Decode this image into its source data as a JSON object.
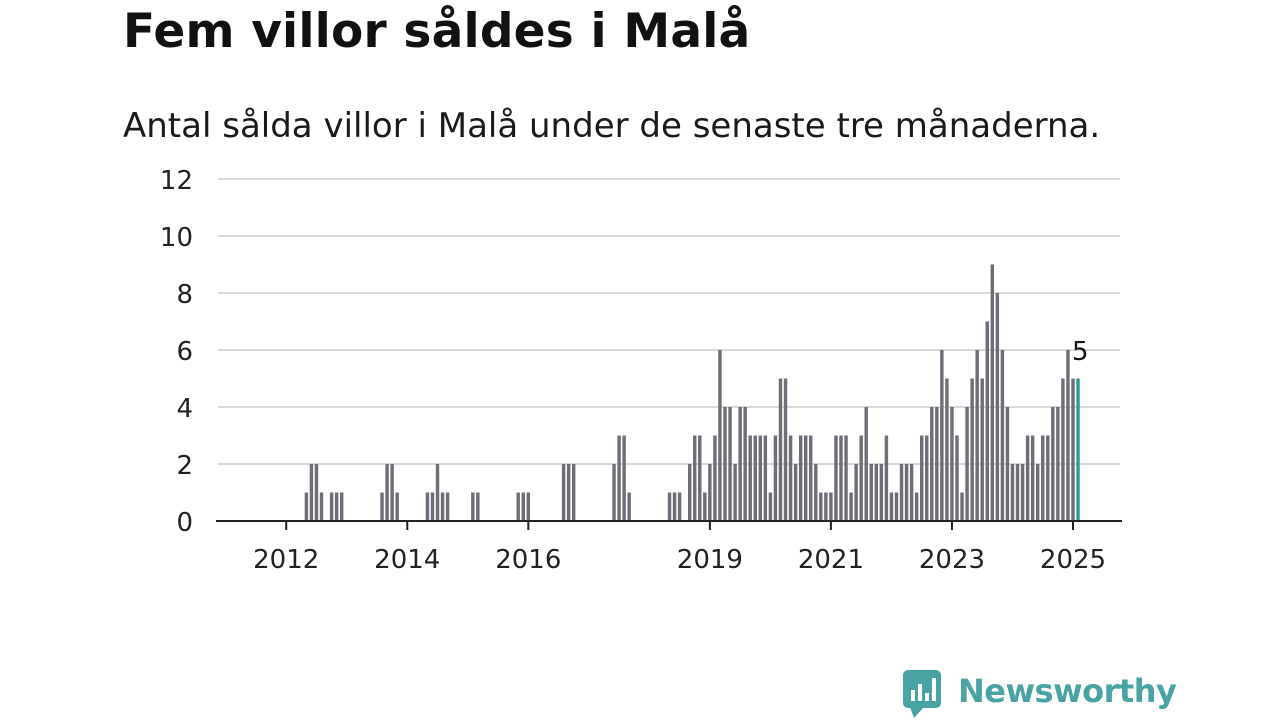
{
  "title": "Fem villor såldes i Malå",
  "subtitle": "Antal sålda villor i Malå under de senaste tre månaderna.",
  "brand": {
    "name": "Newsworthy",
    "icon": "newsworthy-logo-icon",
    "color": "#4aa3a3"
  },
  "colors": {
    "bar": "#6e6e78",
    "highlight": "#2b9c95",
    "grid": "#d9d9d9",
    "axis": "#222222",
    "text": "#222222"
  },
  "chart_data": {
    "type": "bar",
    "title": "Fem villor såldes i Malå",
    "subtitle": "Antal sålda villor i Malå under de senaste tre månaderna.",
    "xlabel": "",
    "ylabel": "",
    "ylim": [
      0,
      12
    ],
    "yticks": [
      "0",
      "2",
      "4",
      "6",
      "8",
      "10",
      "12"
    ],
    "grid": true,
    "legend": "none",
    "x_start": "2011-08",
    "x_end": "2025-01",
    "xticks": [
      {
        "label": "2012",
        "date": "2012-01"
      },
      {
        "label": "2014",
        "date": "2014-01"
      },
      {
        "label": "2016",
        "date": "2016-01"
      },
      {
        "label": "2019",
        "date": "2019-01"
      },
      {
        "label": "2021",
        "date": "2021-01"
      },
      {
        "label": "2023",
        "date": "2023-01"
      },
      {
        "label": "2025",
        "date": "2025-01"
      }
    ],
    "series": [
      {
        "values": [
          {
            "x": "2012-05",
            "y": 1
          },
          {
            "x": "2012-06",
            "y": 2
          },
          {
            "x": "2012-07",
            "y": 2
          },
          {
            "x": "2012-08",
            "y": 1
          },
          {
            "x": "2012-10",
            "y": 1
          },
          {
            "x": "2012-11",
            "y": 1
          },
          {
            "x": "2012-12",
            "y": 1
          },
          {
            "x": "2013-08",
            "y": 1
          },
          {
            "x": "2013-09",
            "y": 2
          },
          {
            "x": "2013-10",
            "y": 2
          },
          {
            "x": "2013-11",
            "y": 1
          },
          {
            "x": "2014-05",
            "y": 1
          },
          {
            "x": "2014-06",
            "y": 1
          },
          {
            "x": "2014-07",
            "y": 2
          },
          {
            "x": "2014-08",
            "y": 1
          },
          {
            "x": "2014-09",
            "y": 1
          },
          {
            "x": "2015-02",
            "y": 1
          },
          {
            "x": "2015-03",
            "y": 1
          },
          {
            "x": "2015-11",
            "y": 1
          },
          {
            "x": "2015-12",
            "y": 1
          },
          {
            "x": "2016-01",
            "y": 1
          },
          {
            "x": "2016-08",
            "y": 2
          },
          {
            "x": "2016-09",
            "y": 2
          },
          {
            "x": "2016-10",
            "y": 2
          },
          {
            "x": "2017-06",
            "y": 2
          },
          {
            "x": "2017-07",
            "y": 3
          },
          {
            "x": "2017-08",
            "y": 3
          },
          {
            "x": "2017-09",
            "y": 1
          },
          {
            "x": "2018-05",
            "y": 1
          },
          {
            "x": "2018-06",
            "y": 1
          },
          {
            "x": "2018-07",
            "y": 1
          },
          {
            "x": "2018-09",
            "y": 2
          },
          {
            "x": "2018-10",
            "y": 3
          },
          {
            "x": "2018-11",
            "y": 3
          },
          {
            "x": "2018-12",
            "y": 1
          },
          {
            "x": "2019-01",
            "y": 2
          },
          {
            "x": "2019-02",
            "y": 3
          },
          {
            "x": "2019-03",
            "y": 6
          },
          {
            "x": "2019-04",
            "y": 4
          },
          {
            "x": "2019-05",
            "y": 4
          },
          {
            "x": "2019-06",
            "y": 2
          },
          {
            "x": "2019-07",
            "y": 4
          },
          {
            "x": "2019-08",
            "y": 4
          },
          {
            "x": "2019-09",
            "y": 3
          },
          {
            "x": "2019-10",
            "y": 3
          },
          {
            "x": "2019-11",
            "y": 3
          },
          {
            "x": "2019-12",
            "y": 3
          },
          {
            "x": "2020-01",
            "y": 1
          },
          {
            "x": "2020-02",
            "y": 3
          },
          {
            "x": "2020-03",
            "y": 5
          },
          {
            "x": "2020-04",
            "y": 5
          },
          {
            "x": "2020-05",
            "y": 3
          },
          {
            "x": "2020-06",
            "y": 2
          },
          {
            "x": "2020-07",
            "y": 3
          },
          {
            "x": "2020-08",
            "y": 3
          },
          {
            "x": "2020-09",
            "y": 3
          },
          {
            "x": "2020-10",
            "y": 2
          },
          {
            "x": "2020-11",
            "y": 1
          },
          {
            "x": "2020-12",
            "y": 1
          },
          {
            "x": "2021-01",
            "y": 1
          },
          {
            "x": "2021-02",
            "y": 3
          },
          {
            "x": "2021-03",
            "y": 3
          },
          {
            "x": "2021-04",
            "y": 3
          },
          {
            "x": "2021-05",
            "y": 1
          },
          {
            "x": "2021-06",
            "y": 2
          },
          {
            "x": "2021-07",
            "y": 3
          },
          {
            "x": "2021-08",
            "y": 4
          },
          {
            "x": "2021-09",
            "y": 2
          },
          {
            "x": "2021-10",
            "y": 2
          },
          {
            "x": "2021-11",
            "y": 2
          },
          {
            "x": "2021-12",
            "y": 3
          },
          {
            "x": "2022-01",
            "y": 1
          },
          {
            "x": "2022-02",
            "y": 1
          },
          {
            "x": "2022-03",
            "y": 2
          },
          {
            "x": "2022-04",
            "y": 2
          },
          {
            "x": "2022-05",
            "y": 2
          },
          {
            "x": "2022-06",
            "y": 1
          },
          {
            "x": "2022-07",
            "y": 3
          },
          {
            "x": "2022-08",
            "y": 3
          },
          {
            "x": "2022-09",
            "y": 4
          },
          {
            "x": "2022-10",
            "y": 4
          },
          {
            "x": "2022-11",
            "y": 6
          },
          {
            "x": "2022-12",
            "y": 5
          },
          {
            "x": "2023-01",
            "y": 4
          },
          {
            "x": "2023-02",
            "y": 3
          },
          {
            "x": "2023-03",
            "y": 1
          },
          {
            "x": "2023-04",
            "y": 4
          },
          {
            "x": "2023-05",
            "y": 5
          },
          {
            "x": "2023-06",
            "y": 6
          },
          {
            "x": "2023-07",
            "y": 5
          },
          {
            "x": "2023-08",
            "y": 7
          },
          {
            "x": "2023-09",
            "y": 9
          },
          {
            "x": "2023-10",
            "y": 8
          },
          {
            "x": "2023-11",
            "y": 6
          },
          {
            "x": "2023-12",
            "y": 4
          },
          {
            "x": "2024-01",
            "y": 2
          },
          {
            "x": "2024-02",
            "y": 2
          },
          {
            "x": "2024-03",
            "y": 2
          },
          {
            "x": "2024-04",
            "y": 3
          },
          {
            "x": "2024-05",
            "y": 3
          },
          {
            "x": "2024-06",
            "y": 2
          },
          {
            "x": "2024-07",
            "y": 3
          },
          {
            "x": "2024-08",
            "y": 3
          },
          {
            "x": "2024-09",
            "y": 4
          },
          {
            "x": "2024-10",
            "y": 4
          },
          {
            "x": "2024-11",
            "y": 5
          },
          {
            "x": "2024-12",
            "y": 6
          },
          {
            "x": "2025-01",
            "y": 5
          },
          {
            "x": "2025-02",
            "y": 5
          }
        ]
      }
    ],
    "highlight": {
      "x": "2025-02",
      "y": 5,
      "label": "5"
    }
  }
}
